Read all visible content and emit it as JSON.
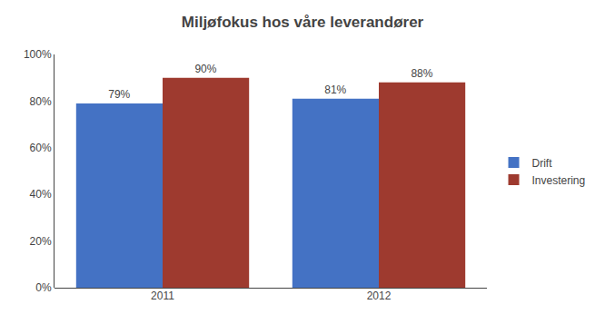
{
  "chart_data": {
    "type": "bar",
    "title": "Miljøfokus hos våre leverandører",
    "categories": [
      "2011",
      "2012"
    ],
    "series": [
      {
        "name": "Drift",
        "color": "#4472C4",
        "values": [
          0.79,
          0.81
        ],
        "value_labels": [
          "79%",
          "81%"
        ]
      },
      {
        "name": "Investering",
        "color": "#9E3A2F",
        "values": [
          0.9,
          0.88
        ],
        "value_labels": [
          "90%",
          "88%"
        ]
      }
    ],
    "ylim": [
      0,
      1.0
    ],
    "yticks": [
      {
        "value": 0.0,
        "label": "0%"
      },
      {
        "value": 0.2,
        "label": "20%"
      },
      {
        "value": 0.4,
        "label": "40%"
      },
      {
        "value": 0.6,
        "label": "60%"
      },
      {
        "value": 0.8,
        "label": "80%"
      },
      {
        "value": 1.0,
        "label": "100%"
      }
    ],
    "grid": false,
    "legend": "right",
    "data_labels": true
  }
}
